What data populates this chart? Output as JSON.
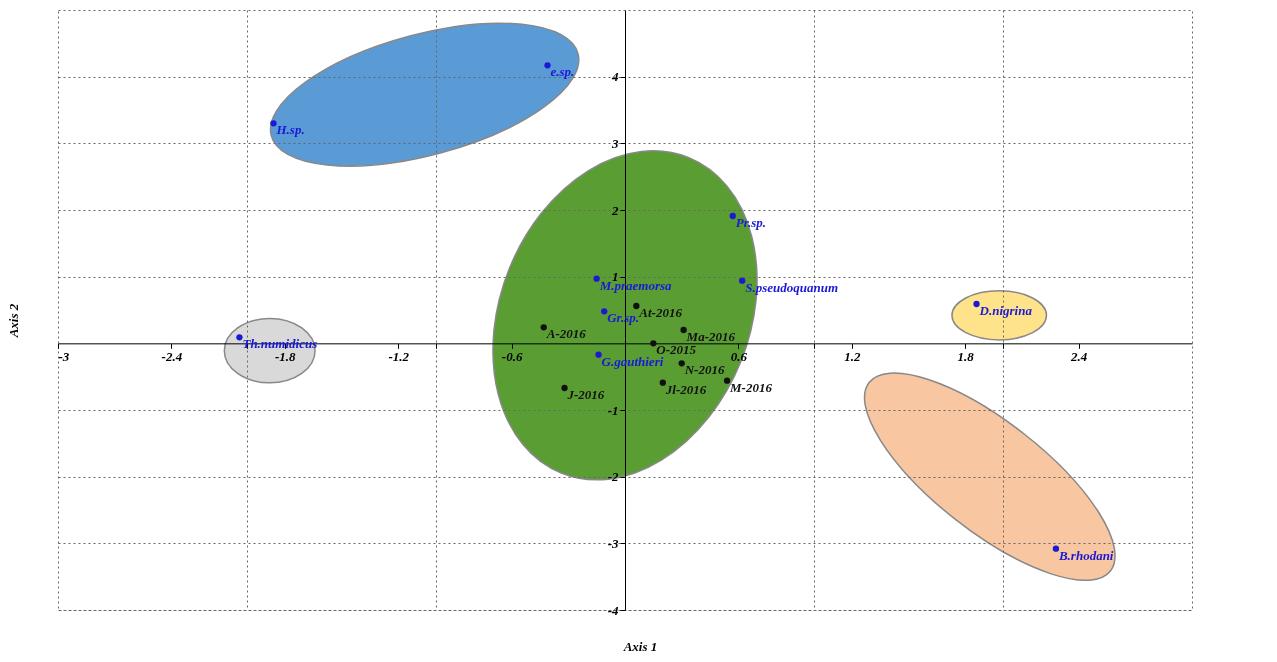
{
  "chart_data": {
    "type": "scatter",
    "xlabel": "Axis 1",
    "ylabel": "Axis 2",
    "xlim": [
      -3,
      3
    ],
    "ylim": [
      -4,
      5
    ],
    "xticks": [
      -3,
      -2.4,
      {
        "value": -2,
        "label": null
      },
      -1.8,
      -1.2,
      {
        "value": -1,
        "label": null
      },
      -0.6,
      0.6,
      {
        "value": 1,
        "label": null
      },
      1.2,
      1.8,
      {
        "value": 2,
        "label": null
      },
      2.4
    ],
    "yticks": [
      -4,
      -3,
      -2,
      -1,
      1,
      2,
      3,
      4
    ],
    "grid": true,
    "marker": "circle",
    "series": [
      {
        "color": "#1a1ad6",
        "x": [
          -0.41,
          -1.86,
          -2.04,
          -0.15,
          -0.11,
          -0.14,
          0.57,
          0.62,
          1.86,
          2.28
        ],
        "values": [
          4.17,
          3.3,
          0.09,
          0.97,
          0.48,
          -0.17,
          1.91,
          0.94,
          0.59,
          -3.08
        ]
      },
      {
        "color": "#111111",
        "x": [
          -0.43,
          0.06,
          0.31,
          0.15,
          0.3,
          0.2,
          0.54,
          -0.32
        ],
        "values": [
          0.24,
          0.56,
          0.2,
          0.0,
          -0.3,
          -0.59,
          -0.56,
          -0.67
        ]
      }
    ],
    "annotations": [
      {
        "text": "e.sp.",
        "x": -0.41,
        "y": 4.17
      },
      {
        "text": "H.sp.",
        "x": -1.86,
        "y": 3.3
      },
      {
        "text": "Th.numidicus",
        "x": -2.04,
        "y": 0.09
      },
      {
        "text": "M.praemorsa",
        "x": -0.15,
        "y": 0.97
      },
      {
        "text": "Gr.sp.",
        "x": -0.11,
        "y": 0.48
      },
      {
        "text": "G.gauthieri",
        "x": -0.14,
        "y": -0.17
      },
      {
        "text": "Pr.sp.",
        "x": 0.57,
        "y": 1.91
      },
      {
        "text": "S.pseudoquanum",
        "x": 0.62,
        "y": 0.94
      },
      {
        "text": "D.nigrina",
        "x": 1.86,
        "y": 0.59
      },
      {
        "text": "B.rhodani",
        "x": 2.28,
        "y": -3.08
      },
      {
        "text": "A-2016",
        "x": -0.43,
        "y": 0.24
      },
      {
        "text": "At-2016",
        "x": 0.06,
        "y": 0.56
      },
      {
        "text": "Ma-2016",
        "x": 0.31,
        "y": 0.2
      },
      {
        "text": "O-2015",
        "x": 0.15,
        "y": 0.0
      },
      {
        "text": "N-2016",
        "x": 0.3,
        "y": -0.3
      },
      {
        "text": "Jl-2016",
        "x": 0.2,
        "y": -0.59
      },
      {
        "text": "M-2016",
        "x": 0.54,
        "y": -0.56
      },
      {
        "text": "J-2016",
        "x": -0.32,
        "y": -0.67
      }
    ]
  }
}
